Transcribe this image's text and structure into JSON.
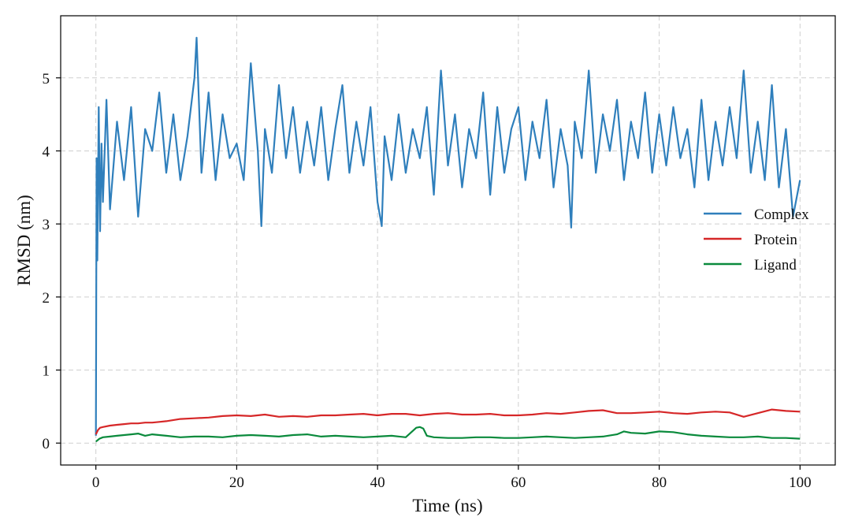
{
  "chart_data": {
    "type": "line",
    "xlabel": "Time (ns)",
    "ylabel": "RMSD (nm)",
    "xlim": [
      -5,
      105
    ],
    "ylim": [
      -0.3,
      5.85
    ],
    "xticks": [
      0,
      20,
      40,
      60,
      80,
      100
    ],
    "yticks": [
      0,
      1,
      2,
      3,
      4,
      5
    ],
    "grid": true,
    "legend_position": "center-right",
    "colors": {
      "Complex": "#2f7fbc",
      "Protein": "#d62728",
      "Ligand": "#0a8a3c"
    },
    "series": [
      {
        "name": "Complex",
        "x": [
          0,
          0.1,
          0.2,
          0.4,
          0.6,
          0.8,
          1,
          1.5,
          2,
          3,
          4,
          5,
          6,
          7,
          8,
          9,
          10,
          11,
          12,
          13,
          14,
          14.3,
          15,
          16,
          17,
          18,
          19,
          20,
          21,
          22,
          23,
          23.5,
          24,
          25,
          26,
          27,
          28,
          29,
          30,
          31,
          32,
          33,
          34,
          35,
          36,
          37,
          38,
          39,
          40,
          40.6,
          41,
          42,
          43,
          44,
          45,
          46,
          47,
          48,
          49,
          50,
          51,
          52,
          53,
          54,
          55,
          56,
          57,
          58,
          59,
          60,
          61,
          62,
          63,
          64,
          65,
          66,
          67,
          67.5,
          68,
          69,
          70,
          71,
          72,
          73,
          74,
          75,
          76,
          77,
          78,
          79,
          80,
          81,
          82,
          83,
          84,
          85,
          86,
          87,
          88,
          89,
          90,
          91,
          92,
          93,
          94,
          95,
          96,
          97,
          98,
          99,
          100
        ],
        "values": [
          0.1,
          3.9,
          2.5,
          4.6,
          2.9,
          4.1,
          3.3,
          4.7,
          3.2,
          4.4,
          3.6,
          4.6,
          3.1,
          4.3,
          4.0,
          4.8,
          3.7,
          4.5,
          3.6,
          4.2,
          5.0,
          5.55,
          3.7,
          4.8,
          3.6,
          4.5,
          3.9,
          4.1,
          3.6,
          5.2,
          4.0,
          2.97,
          4.3,
          3.7,
          4.9,
          3.9,
          4.6,
          3.7,
          4.4,
          3.8,
          4.6,
          3.6,
          4.3,
          4.9,
          3.7,
          4.4,
          3.8,
          4.6,
          3.3,
          2.97,
          4.2,
          3.6,
          4.5,
          3.7,
          4.3,
          3.9,
          4.6,
          3.4,
          5.1,
          3.8,
          4.5,
          3.5,
          4.3,
          3.9,
          4.8,
          3.4,
          4.6,
          3.7,
          4.3,
          4.6,
          3.6,
          4.4,
          3.9,
          4.7,
          3.5,
          4.3,
          3.8,
          2.95,
          4.4,
          3.9,
          5.1,
          3.7,
          4.5,
          4.0,
          4.7,
          3.6,
          4.4,
          3.9,
          4.8,
          3.7,
          4.5,
          3.8,
          4.6,
          3.9,
          4.3,
          3.5,
          4.7,
          3.6,
          4.4,
          3.8,
          4.6,
          3.9,
          5.1,
          3.7,
          4.4,
          3.6,
          4.9,
          3.5,
          4.3,
          3.1,
          3.6
        ]
      },
      {
        "name": "Protein",
        "x": [
          0,
          0.3,
          0.6,
          1,
          2,
          3,
          4,
          5,
          6,
          7,
          8,
          9,
          10,
          12,
          14,
          16,
          18,
          20,
          22,
          24,
          26,
          28,
          30,
          32,
          34,
          36,
          38,
          40,
          42,
          44,
          46,
          48,
          50,
          52,
          54,
          56,
          58,
          60,
          62,
          64,
          66,
          68,
          70,
          72,
          74,
          76,
          78,
          80,
          82,
          84,
          86,
          88,
          90,
          92,
          94,
          96,
          98,
          100
        ],
        "values": [
          0.12,
          0.18,
          0.21,
          0.22,
          0.24,
          0.25,
          0.26,
          0.27,
          0.27,
          0.28,
          0.28,
          0.29,
          0.3,
          0.33,
          0.34,
          0.35,
          0.37,
          0.38,
          0.37,
          0.39,
          0.36,
          0.37,
          0.36,
          0.38,
          0.38,
          0.39,
          0.4,
          0.38,
          0.4,
          0.4,
          0.38,
          0.4,
          0.41,
          0.39,
          0.39,
          0.4,
          0.38,
          0.38,
          0.39,
          0.41,
          0.4,
          0.42,
          0.44,
          0.45,
          0.41,
          0.41,
          0.42,
          0.43,
          0.41,
          0.4,
          0.42,
          0.43,
          0.42,
          0.36,
          0.41,
          0.46,
          0.44,
          0.43
        ]
      },
      {
        "name": "Ligand",
        "x": [
          0,
          0.5,
          1,
          2,
          3,
          4,
          5,
          6,
          7,
          8,
          9,
          10,
          12,
          14,
          16,
          18,
          20,
          22,
          24,
          26,
          28,
          30,
          32,
          34,
          36,
          38,
          40,
          42,
          44,
          45.5,
          46,
          46.5,
          47,
          48,
          50,
          52,
          54,
          56,
          58,
          60,
          62,
          64,
          66,
          68,
          70,
          72,
          74,
          75,
          76,
          78,
          80,
          82,
          84,
          86,
          88,
          90,
          92,
          94,
          96,
          98,
          100
        ],
        "values": [
          0.02,
          0.06,
          0.08,
          0.09,
          0.1,
          0.11,
          0.12,
          0.13,
          0.1,
          0.12,
          0.11,
          0.1,
          0.08,
          0.09,
          0.09,
          0.08,
          0.1,
          0.11,
          0.1,
          0.09,
          0.11,
          0.12,
          0.09,
          0.1,
          0.09,
          0.08,
          0.09,
          0.1,
          0.08,
          0.21,
          0.22,
          0.2,
          0.1,
          0.08,
          0.07,
          0.07,
          0.08,
          0.08,
          0.07,
          0.07,
          0.08,
          0.09,
          0.08,
          0.07,
          0.08,
          0.09,
          0.12,
          0.16,
          0.14,
          0.13,
          0.16,
          0.15,
          0.12,
          0.1,
          0.09,
          0.08,
          0.08,
          0.09,
          0.07,
          0.07,
          0.06
        ]
      }
    ]
  }
}
